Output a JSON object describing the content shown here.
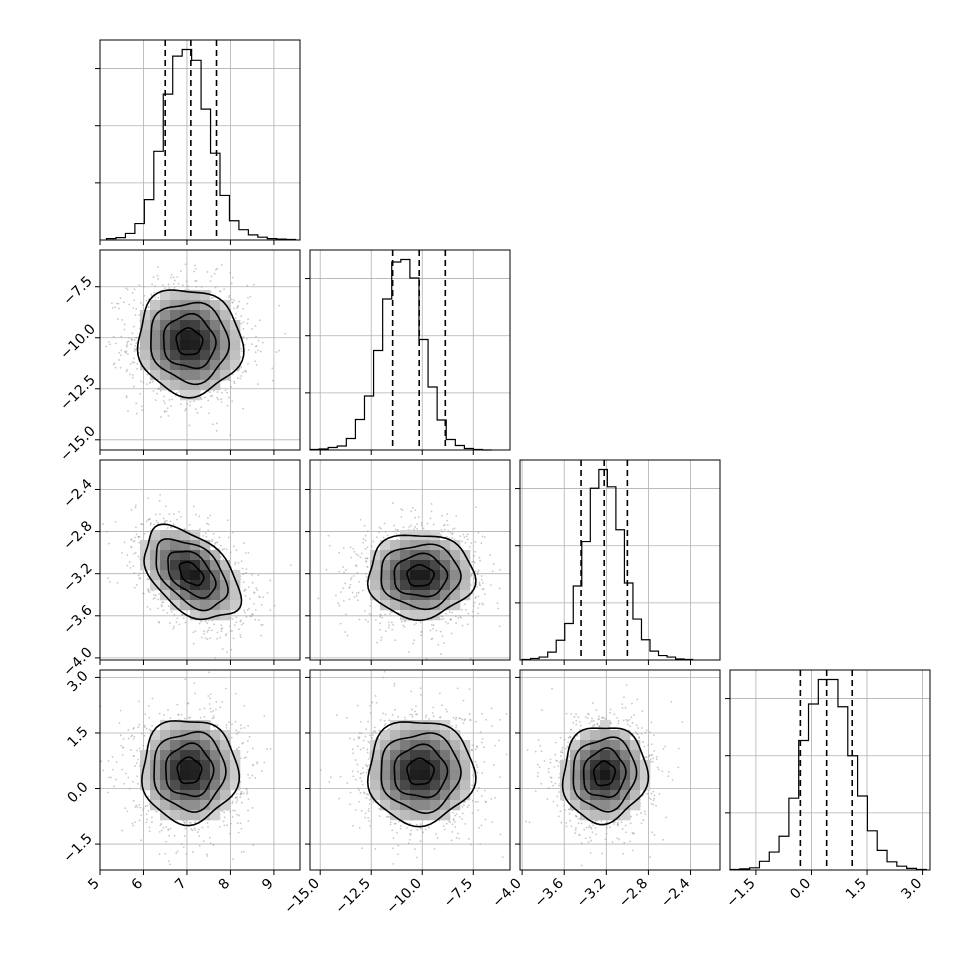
{
  "chart_data": {
    "type": "corner",
    "parameters": 4,
    "bins": 20,
    "grid": true,
    "quantile_lines": "dashed",
    "contour_levels": 4,
    "ranges": [
      [
        5.0,
        9.6
      ],
      [
        -15.5,
        -5.7
      ],
      [
        -4.02,
        -2.12
      ],
      [
        -2.2,
        3.2
      ]
    ],
    "ticks": [
      [
        "5",
        "6",
        "7",
        "8",
        "9"
      ],
      [
        "−15.0",
        "−12.5",
        "−10.0",
        "−7.5"
      ],
      [
        "−4.0",
        "−3.6",
        "−3.2",
        "−2.8",
        "−2.4"
      ],
      [
        "−1.5",
        "0.0",
        "1.5",
        "3.0"
      ]
    ],
    "tick_values": [
      [
        5,
        6,
        7,
        8,
        9
      ],
      [
        -15.0,
        -12.5,
        -10.0,
        -7.5
      ],
      [
        -4.0,
        -3.6,
        -3.2,
        -2.8,
        -2.4
      ],
      [
        -1.5,
        0.0,
        1.5,
        3.0
      ]
    ],
    "marginals": [
      {
        "parameter": 0,
        "quantiles": [
          6.5,
          7.09,
          7.68
        ],
        "bin_edges_range": [
          5.15,
          9.5
        ],
        "counts": [
          3,
          5,
          14,
          35,
          86,
          189,
          311,
          392,
          406,
          383,
          279,
          185,
          95,
          41,
          22,
          11,
          6,
          3,
          2,
          1
        ]
      },
      {
        "parameter": 1,
        "quantiles": [
          -11.45,
          -10.15,
          -8.87
        ],
        "bin_edges_range": [
          -15.5,
          -6.6
        ],
        "counts": [
          1,
          2,
          5,
          8,
          23,
          61,
          108,
          199,
          302,
          376,
          381,
          344,
          221,
          126,
          60,
          21,
          9,
          3,
          1,
          0
        ]
      },
      {
        "parameter": 2,
        "quantiles": [
          -3.44,
          -3.22,
          -3.0
        ],
        "bin_edges_range": [
          -4.0,
          -2.38
        ],
        "counts": [
          1,
          3,
          6,
          16,
          40,
          74,
          150,
          240,
          348,
          386,
          351,
          264,
          156,
          83,
          41,
          18,
          9,
          6,
          2,
          1
        ]
      },
      {
        "parameter": 3,
        "quantiles": [
          -0.3,
          0.41,
          1.1
        ],
        "bin_edges_range": [
          -2.2,
          3.1
        ],
        "counts": [
          1,
          2,
          4,
          16,
          33,
          62,
          132,
          238,
          305,
          350,
          350,
          300,
          210,
          136,
          72,
          36,
          15,
          7,
          3,
          1
        ]
      }
    ],
    "joint": [
      {
        "x_param": 0,
        "y_param": 1,
        "center": [
          7.05,
          -10.2
        ],
        "sigma": [
          0.6,
          1.3
        ],
        "rho": -0.05
      },
      {
        "x_param": 0,
        "y_param": 2,
        "center": [
          7.1,
          -3.2
        ],
        "sigma": [
          0.55,
          0.22
        ],
        "rho": -0.45
      },
      {
        "x_param": 1,
        "y_param": 2,
        "center": [
          -10.1,
          -3.22
        ],
        "sigma": [
          1.3,
          0.2
        ],
        "rho": 0.0
      },
      {
        "x_param": 0,
        "y_param": 3,
        "center": [
          7.05,
          0.48
        ],
        "sigma": [
          0.55,
          0.7
        ],
        "rho": 0.0
      },
      {
        "x_param": 1,
        "y_param": 3,
        "center": [
          -10.1,
          0.45
        ],
        "sigma": [
          1.3,
          0.7
        ],
        "rho": 0.0
      },
      {
        "x_param": 2,
        "y_param": 3,
        "center": [
          -3.22,
          0.4
        ],
        "sigma": [
          0.2,
          0.65
        ],
        "rho": 0.05
      }
    ]
  }
}
